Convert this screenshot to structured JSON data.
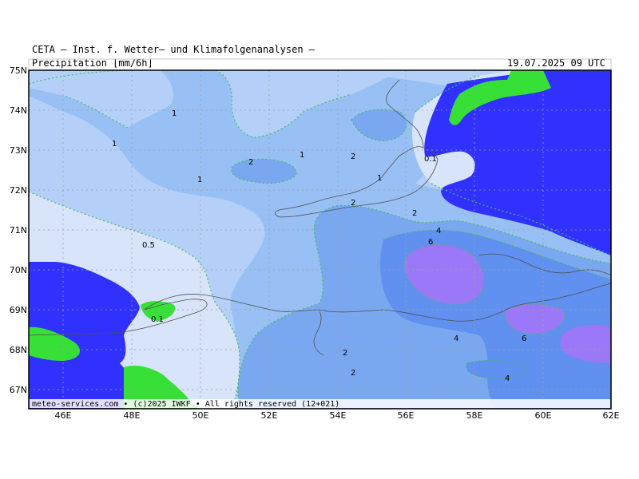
{
  "header": {
    "title": "CETA — Inst. f. Wetter— und Klimafolgenanalysen —",
    "parameter": "Precipitation [mm/6h]",
    "valid_time": "19.07.2025 09 UTC"
  },
  "footer": {
    "credit": "meteo-services.com • (c)2025 IWKF • All rights reserved (12+021)"
  },
  "axes": {
    "lat_labels": [
      "75N",
      "74N",
      "73N",
      "72N",
      "71N",
      "70N",
      "69N",
      "68N",
      "67N"
    ],
    "lon_labels": [
      "46E",
      "48E",
      "50E",
      "52E",
      "54E",
      "56E",
      "58E",
      "60E",
      "62E"
    ]
  },
  "contour_labels": [
    "1",
    "1",
    "1",
    "1",
    "2",
    "2",
    "2",
    "1",
    "0.1",
    "2",
    "4",
    "6",
    "0.5",
    "0.1",
    "4",
    "6",
    "2",
    "2",
    "4"
  ],
  "colors": {
    "lt_0_1": "#3030ff",
    "0_1_to_0_5": "#d8e4fa",
    "0_5_to_1": "#b4d0f8",
    "1_to_2": "#98c0f4",
    "2_to_4": "#7aa8f0",
    "4_to_6": "#6090f0",
    "gt_6": "#9a78f8",
    "green_zone": "#36e036",
    "contour_line": "#40c060",
    "coastline": "#505050"
  }
}
